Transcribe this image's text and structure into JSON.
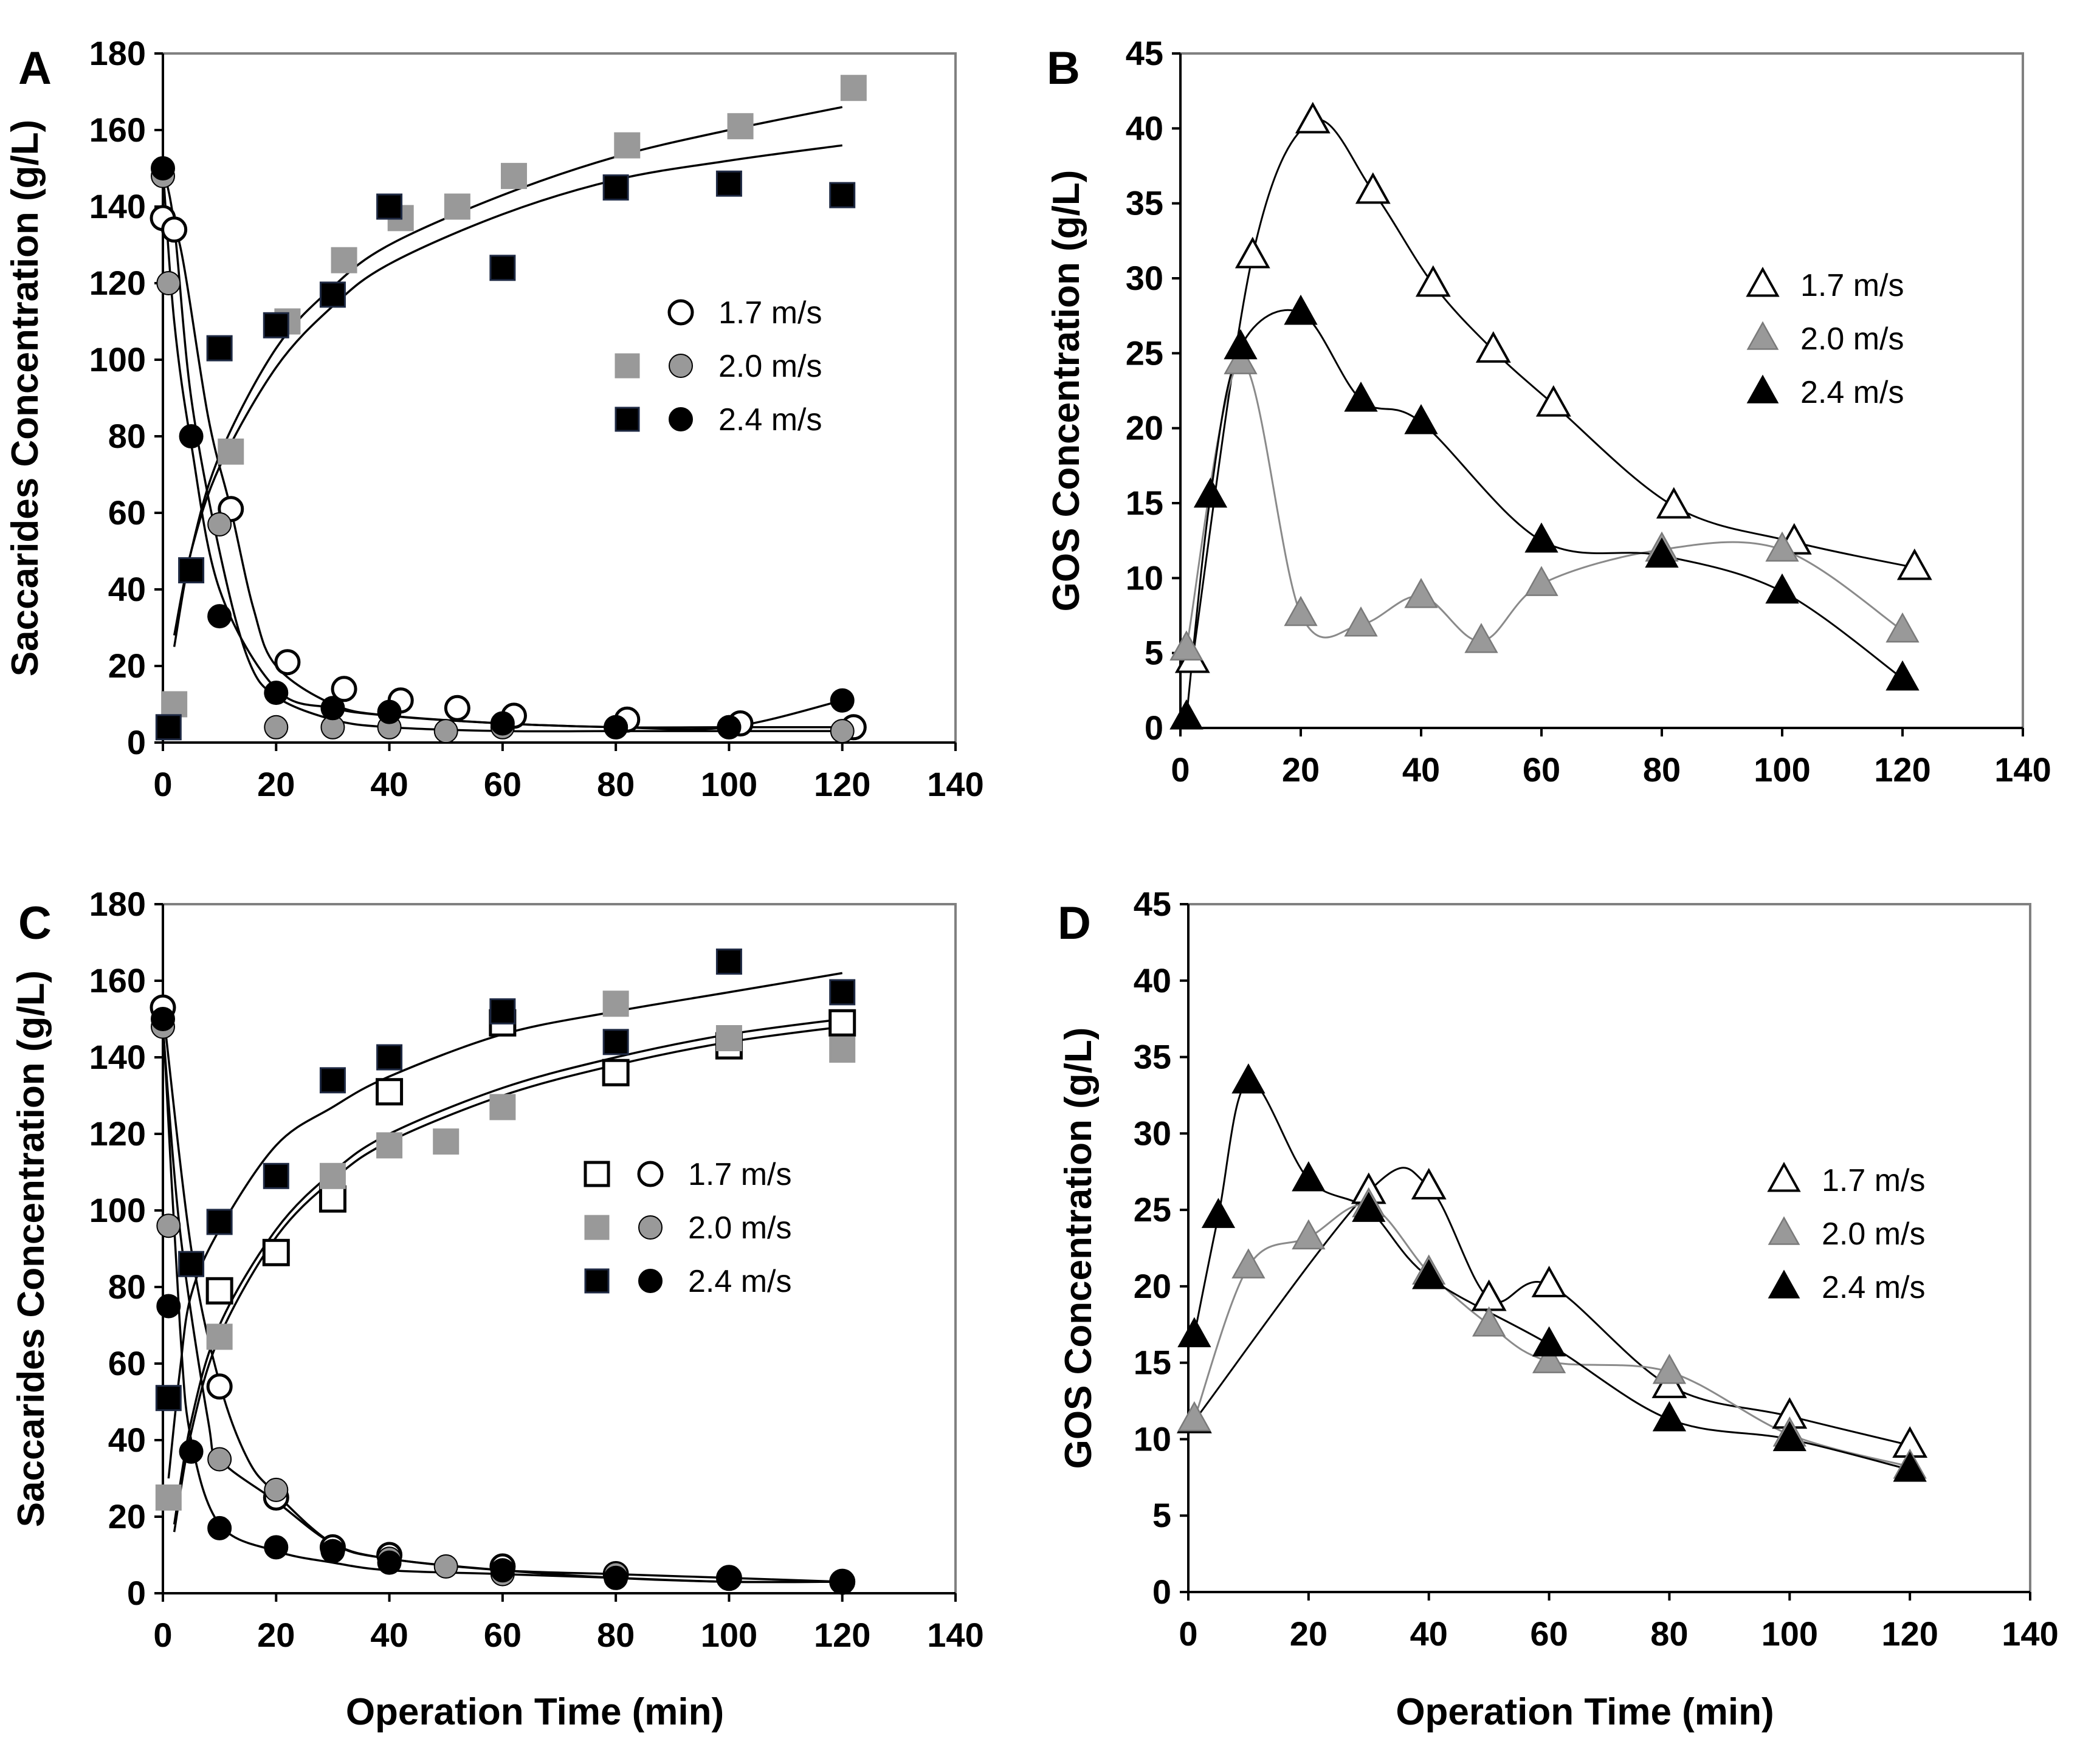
{
  "colors": {
    "gray": "#999999",
    "black": "#000000",
    "white": "#ffffff",
    "navy_edge": "#1f2a44"
  },
  "chart_data": [
    {
      "id": "A",
      "type": "scatter",
      "panel_label": "A",
      "ylabel": "Saccarides Concentration (g/L)",
      "xlabel": "",
      "xlim": [
        0,
        140
      ],
      "ylim": [
        0,
        180
      ],
      "xticks": [
        "0",
        "20",
        "40",
        "60",
        "80",
        "100",
        "120",
        "140"
      ],
      "yticks": [
        "0",
        "20",
        "40",
        "60",
        "80",
        "100",
        "120",
        "140",
        "160",
        "180"
      ],
      "legend": [
        {
          "label": "1.7 m/s",
          "markers": [
            {
              "shape": "circle",
              "fill": "white"
            }
          ]
        },
        {
          "label": "2.0 m/s",
          "markers": [
            {
              "shape": "square",
              "fill": "gray"
            },
            {
              "shape": "circle",
              "fill": "gray"
            }
          ]
        },
        {
          "label": "2.4 m/s",
          "markers": [
            {
              "shape": "square",
              "fill": "black"
            },
            {
              "shape": "circle",
              "fill": "black"
            }
          ]
        }
      ],
      "series": [
        {
          "name": "1.7 m/s (circles)",
          "marker": "circle",
          "fill": "white",
          "x": [
            0,
            2,
            12,
            22,
            32,
            42,
            52,
            62,
            82,
            102,
            122
          ],
          "y": [
            137,
            134,
            61,
            21,
            14,
            11,
            9,
            7,
            6,
            5,
            4
          ]
        },
        {
          "name": "2.0 m/s (circles)",
          "marker": "circle",
          "fill": "gray",
          "x": [
            0,
            1,
            10,
            20,
            30,
            40,
            50,
            60,
            80,
            100,
            120
          ],
          "y": [
            148,
            120,
            57,
            4,
            4,
            4,
            3,
            4,
            4,
            4,
            3
          ]
        },
        {
          "name": "2.4 m/s (circles)",
          "marker": "circle",
          "fill": "black",
          "x": [
            0,
            5,
            10,
            20,
            30,
            40,
            60,
            80,
            100,
            120
          ],
          "y": [
            150,
            80,
            33,
            13,
            9,
            8,
            5,
            4,
            4,
            11
          ]
        },
        {
          "name": "2.0 m/s (squares)",
          "marker": "square",
          "fill": "gray",
          "x": [
            2,
            12,
            22,
            32,
            42,
            52,
            62,
            82,
            102,
            122
          ],
          "y": [
            10,
            76,
            110,
            126,
            137,
            140,
            148,
            156,
            161,
            171
          ]
        },
        {
          "name": "2.4 m/s (squares)",
          "marker": "square",
          "fill": "black",
          "x": [
            1,
            5,
            10,
            20,
            30,
            40,
            60,
            80,
            100,
            120
          ],
          "y": [
            4,
            45,
            103,
            109,
            117,
            140,
            124,
            145,
            146,
            143
          ]
        }
      ],
      "fits": [
        {
          "x": [
            2,
            5,
            10,
            20,
            30,
            40,
            60,
            80,
            100,
            120
          ],
          "y": [
            25,
            50,
            75,
            103,
            119,
            130,
            143,
            153,
            160,
            166
          ]
        },
        {
          "x": [
            2,
            5,
            10,
            20,
            30,
            40,
            60,
            80,
            100,
            120
          ],
          "y": [
            28,
            50,
            72,
            98,
            114,
            125,
            138,
            147,
            152,
            156
          ]
        },
        {
          "x": [
            0,
            2,
            5,
            10,
            15,
            20,
            30,
            40,
            60,
            80,
            100,
            120
          ],
          "y": [
            150,
            135,
            90,
            50,
            22,
            12,
            6,
            4,
            3,
            3,
            3,
            3
          ]
        },
        {
          "x": [
            0,
            3,
            8,
            12,
            16,
            20,
            30,
            40,
            60,
            80,
            100,
            120
          ],
          "y": [
            137,
            130,
            85,
            61,
            35,
            20,
            10,
            7,
            5,
            4,
            4,
            4
          ]
        },
        {
          "x": [
            0,
            2,
            5,
            10,
            20,
            30,
            40,
            60,
            80,
            100,
            120
          ],
          "y": [
            150,
            110,
            78,
            40,
            14,
            9,
            7,
            5,
            4,
            4,
            11
          ]
        }
      ]
    },
    {
      "id": "B",
      "type": "line",
      "panel_label": "B",
      "ylabel": "GOS Concentration (g/L)",
      "xlabel": "",
      "xlim": [
        0,
        140
      ],
      "ylim": [
        0,
        45
      ],
      "xticks": [
        "0",
        "20",
        "40",
        "60",
        "80",
        "100",
        "120",
        "140"
      ],
      "yticks": [
        "0",
        "5",
        "10",
        "15",
        "20",
        "25",
        "30",
        "35",
        "40",
        "45"
      ],
      "legend": [
        {
          "label": "1.7 m/s",
          "markers": [
            {
              "shape": "triangle",
              "fill": "white"
            }
          ]
        },
        {
          "label": "2.0 m/s",
          "markers": [
            {
              "shape": "triangle",
              "fill": "gray"
            }
          ]
        },
        {
          "label": "2.4 m/s",
          "markers": [
            {
              "shape": "triangle",
              "fill": "black"
            }
          ]
        }
      ],
      "series": [
        {
          "name": "1.7 m/s",
          "marker": "triangle",
          "fill": "white",
          "x": [
            2,
            12,
            22,
            32,
            42,
            52,
            62,
            82,
            102,
            122
          ],
          "y": [
            4.5,
            31.5,
            40.5,
            35.8,
            29.6,
            25.2,
            21.6,
            14.8,
            12.4,
            10.7
          ]
        },
        {
          "name": "2.0 m/s",
          "marker": "triangle",
          "fill": "gray",
          "x": [
            1,
            10,
            20,
            30,
            40,
            50,
            60,
            80,
            100,
            120
          ],
          "y": [
            5.3,
            24.4,
            7.6,
            6.9,
            8.8,
            5.8,
            9.6,
            11.9,
            11.9,
            6.5
          ]
        },
        {
          "name": "2.4 m/s",
          "marker": "triangle",
          "fill": "black",
          "x": [
            1,
            5,
            10,
            20,
            30,
            40,
            60,
            80,
            100,
            120
          ],
          "y": [
            0.7,
            15.5,
            25.4,
            27.7,
            21.9,
            20.4,
            12.5,
            11.5,
            9.1,
            3.3
          ]
        }
      ]
    },
    {
      "id": "C",
      "type": "scatter",
      "panel_label": "C",
      "ylabel": "Saccarides Concentration (g/L)",
      "xlabel": "Operation Time (min)",
      "xlim": [
        0,
        140
      ],
      "ylim": [
        0,
        180
      ],
      "xticks": [
        "0",
        "20",
        "40",
        "60",
        "80",
        "100",
        "120",
        "140"
      ],
      "yticks": [
        "0",
        "20",
        "40",
        "60",
        "80",
        "100",
        "120",
        "140",
        "160",
        "180"
      ],
      "legend": [
        {
          "label": "1.7 m/s",
          "markers": [
            {
              "shape": "square",
              "fill": "white"
            },
            {
              "shape": "circle",
              "fill": "white"
            }
          ]
        },
        {
          "label": "2.0 m/s",
          "markers": [
            {
              "shape": "square",
              "fill": "gray"
            },
            {
              "shape": "circle",
              "fill": "gray"
            }
          ]
        },
        {
          "label": "2.4 m/s",
          "markers": [
            {
              "shape": "square",
              "fill": "black"
            },
            {
              "shape": "circle",
              "fill": "black"
            }
          ]
        }
      ],
      "series": [
        {
          "name": "1.7 m/s (squares)",
          "marker": "square",
          "fill": "white",
          "x": [
            10,
            20,
            30,
            40,
            60,
            80,
            100,
            120
          ],
          "y": [
            79,
            89,
            103,
            131,
            149,
            136,
            143,
            149
          ]
        },
        {
          "name": "2.0 m/s (squares)",
          "marker": "square",
          "fill": "gray",
          "x": [
            1,
            10,
            30,
            40,
            50,
            60,
            80,
            100,
            120
          ],
          "y": [
            25,
            67,
            109,
            117,
            118,
            127,
            154,
            145,
            142
          ]
        },
        {
          "name": "2.4 m/s (squares)",
          "marker": "square",
          "fill": "black",
          "x": [
            1,
            5,
            10,
            20,
            30,
            40,
            60,
            80,
            100,
            120
          ],
          "y": [
            51,
            86,
            97,
            109,
            134,
            140,
            152,
            144,
            165,
            157
          ]
        },
        {
          "name": "1.7 m/s (circles)",
          "marker": "circle",
          "fill": "white",
          "x": [
            0,
            10,
            20,
            30,
            40,
            60,
            80,
            100,
            120
          ],
          "y": [
            153,
            54,
            25,
            12,
            10,
            7,
            5,
            4,
            3
          ]
        },
        {
          "name": "2.0 m/s (circles)",
          "marker": "circle",
          "fill": "gray",
          "x": [
            0,
            1,
            10,
            20,
            30,
            40,
            50,
            60,
            80,
            100,
            120
          ],
          "y": [
            148,
            96,
            35,
            27,
            11,
            9,
            7,
            5,
            5,
            4,
            3
          ]
        },
        {
          "name": "2.4 m/s (circles)",
          "marker": "circle",
          "fill": "black",
          "x": [
            0,
            1,
            5,
            10,
            20,
            30,
            40,
            60,
            80,
            100,
            120
          ],
          "y": [
            150,
            75,
            37,
            17,
            12,
            11,
            8,
            6,
            4,
            4,
            3
          ]
        }
      ],
      "fits": [
        {
          "x": [
            1,
            3,
            5,
            10,
            20,
            30,
            40,
            60,
            80,
            100,
            120
          ],
          "y": [
            30,
            58,
            78,
            95,
            117,
            127,
            135,
            146,
            152,
            157,
            162
          ]
        },
        {
          "x": [
            2,
            5,
            10,
            20,
            30,
            40,
            60,
            80,
            100,
            120
          ],
          "y": [
            18,
            45,
            70,
            95,
            110,
            120,
            132,
            140,
            146,
            150
          ]
        },
        {
          "x": [
            2,
            5,
            10,
            20,
            30,
            40,
            60,
            80,
            100,
            120
          ],
          "y": [
            16,
            42,
            67,
            93,
            108,
            118,
            130,
            138,
            144,
            148
          ]
        },
        {
          "x": [
            0,
            3,
            5,
            10,
            20,
            30,
            40,
            60,
            80,
            100,
            120
          ],
          "y": [
            150,
            70,
            40,
            18,
            11,
            8,
            6,
            5,
            4,
            3,
            3
          ]
        },
        {
          "x": [
            0,
            5,
            10,
            15,
            20,
            30,
            40,
            60,
            80,
            100,
            120
          ],
          "y": [
            153,
            90,
            55,
            35,
            26,
            13,
            9,
            6,
            4,
            3,
            3
          ]
        },
        {
          "x": [
            0,
            3,
            8,
            10,
            20,
            30,
            40,
            60,
            80,
            100,
            120
          ],
          "y": [
            148,
            95,
            45,
            35,
            24,
            13,
            9,
            6,
            5,
            4,
            3
          ]
        }
      ]
    },
    {
      "id": "D",
      "type": "line",
      "panel_label": "D",
      "ylabel": "GOS Concentration (g/L)",
      "xlabel": "Operation Time (min)",
      "xlim": [
        0,
        140
      ],
      "ylim": [
        0,
        45
      ],
      "xticks": [
        "0",
        "20",
        "40",
        "60",
        "80",
        "100",
        "120",
        "140"
      ],
      "yticks": [
        "0",
        "5",
        "10",
        "15",
        "20",
        "25",
        "30",
        "35",
        "40",
        "45"
      ],
      "legend": [
        {
          "label": "1.7 m/s",
          "markers": [
            {
              "shape": "triangle",
              "fill": "white"
            }
          ]
        },
        {
          "label": "2.0 m/s",
          "markers": [
            {
              "shape": "triangle",
              "fill": "gray"
            }
          ]
        },
        {
          "label": "2.4 m/s",
          "markers": [
            {
              "shape": "triangle",
              "fill": "black"
            }
          ]
        }
      ],
      "series": [
        {
          "name": "1.7 m/s",
          "marker": "triangle",
          "fill": "white",
          "x": [
            1,
            30,
            40,
            50,
            60,
            80,
            100,
            120
          ],
          "y": [
            11.2,
            26.2,
            26.5,
            19.2,
            20.1,
            13.5,
            11.5,
            9.6
          ]
        },
        {
          "name": "2.0 m/s",
          "marker": "triangle",
          "fill": "gray",
          "x": [
            1,
            10,
            20,
            30,
            40,
            50,
            60,
            80,
            100,
            120
          ],
          "y": [
            11.3,
            21.3,
            23.2,
            25.3,
            20.9,
            17.5,
            15.1,
            14.4,
            10.3,
            8.2
          ]
        },
        {
          "name": "2.4 m/s",
          "marker": "triangle",
          "fill": "black",
          "x": [
            1,
            5,
            10,
            20,
            30,
            40,
            60,
            80,
            100,
            120
          ],
          "y": [
            16.8,
            24.6,
            33.4,
            27.0,
            25.0,
            20.6,
            16.2,
            11.3,
            10.0,
            8.0
          ]
        }
      ]
    }
  ]
}
